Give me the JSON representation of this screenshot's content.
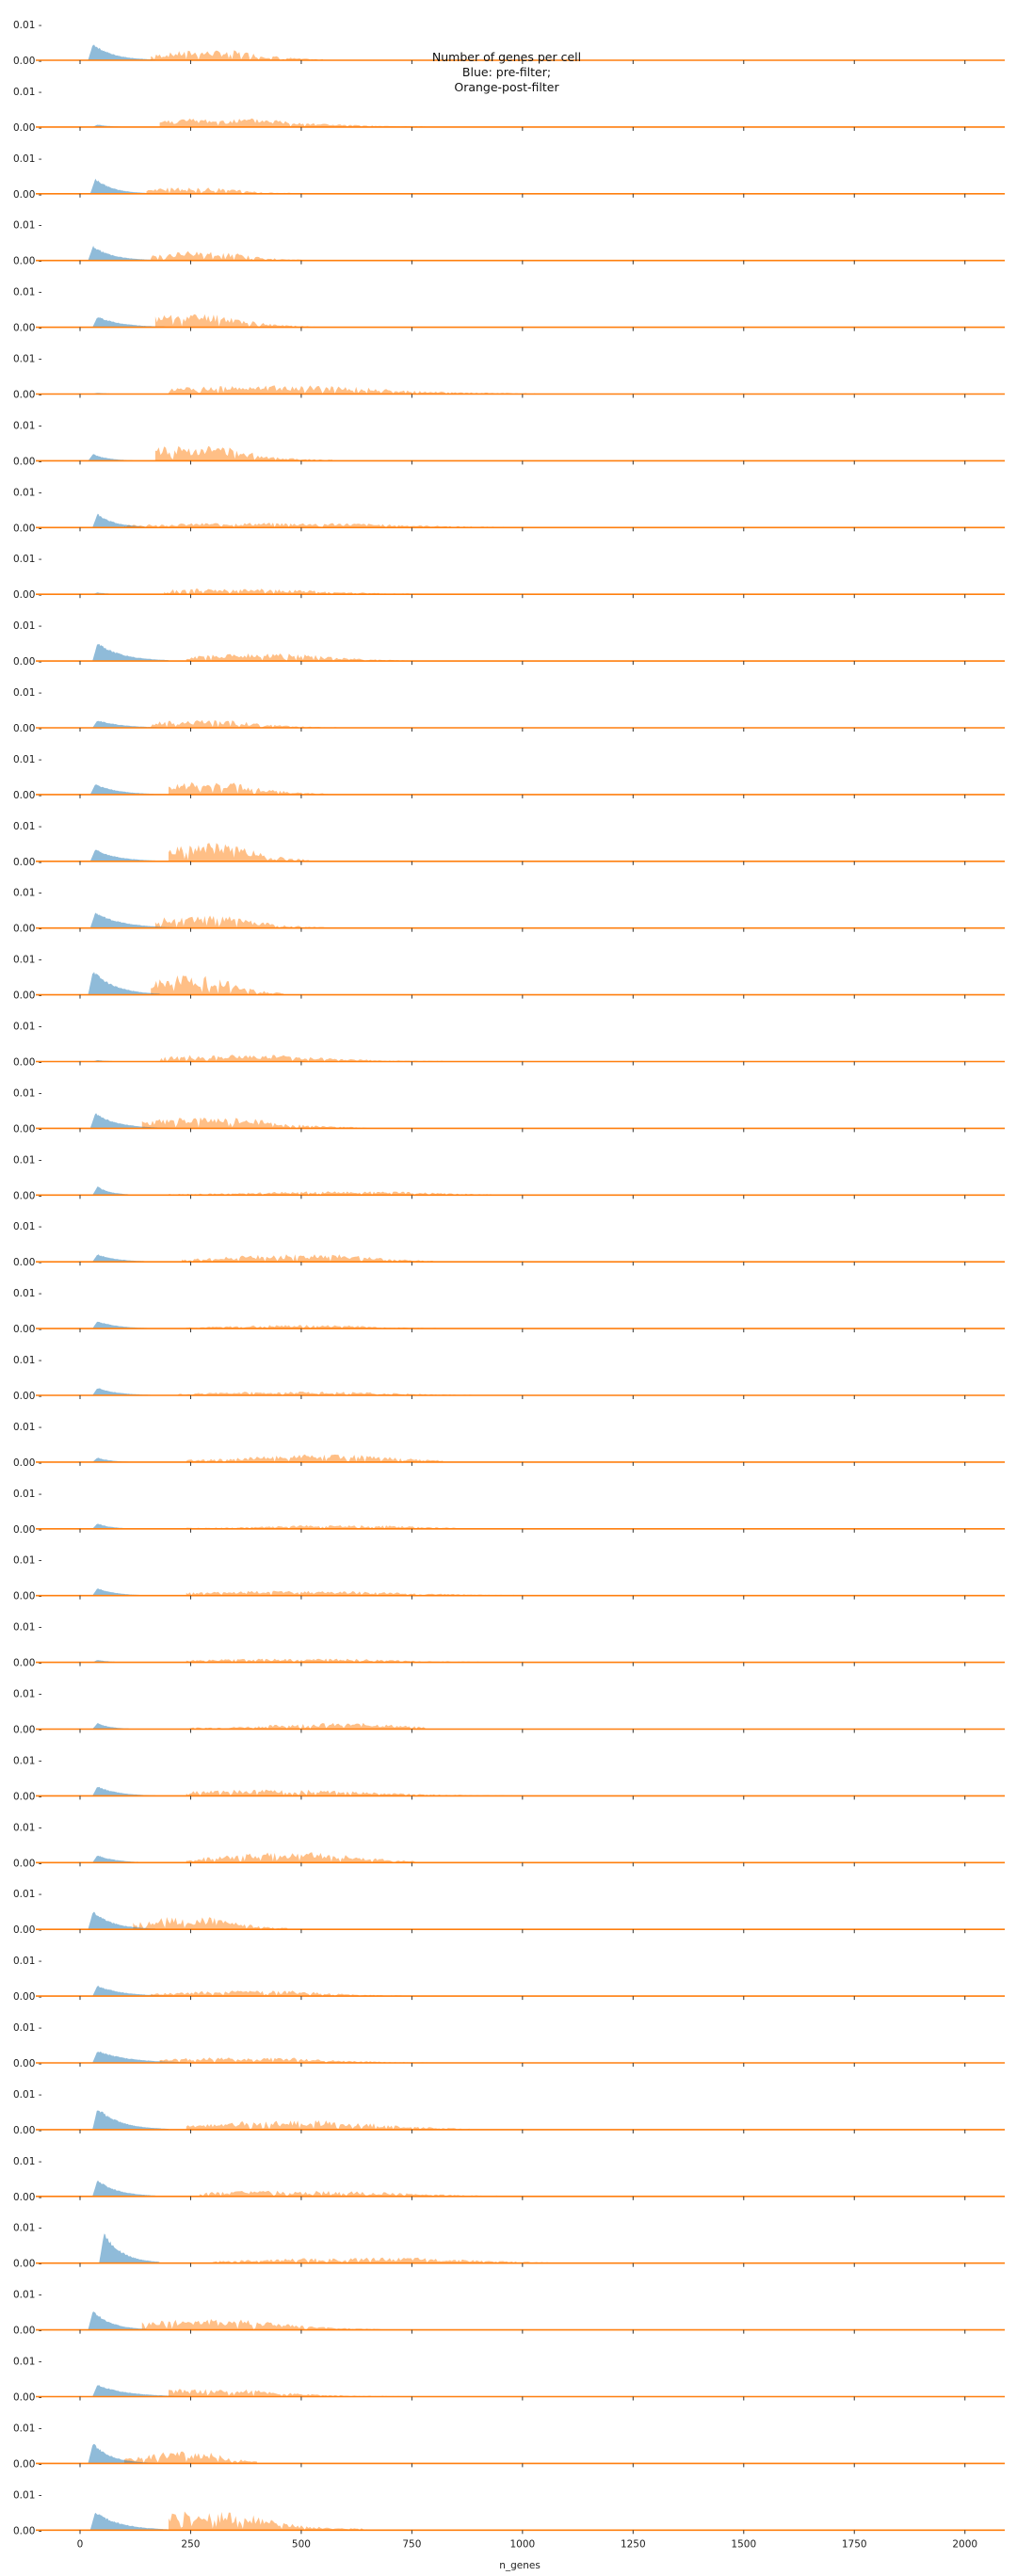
{
  "chart_data": {
    "type": "area",
    "title_lines": [
      "Number of genes per cell",
      "Blue: pre-filter;",
      "Orange-post-filter"
    ],
    "xlabel": "n_genes",
    "xlim": [
      -100,
      2090
    ],
    "x_ticks": [
      0,
      250,
      500,
      750,
      1000,
      1250,
      1500,
      1750,
      2000
    ],
    "y_ticks": [
      "0.00",
      "0.01"
    ],
    "ylim": [
      0,
      0.012
    ],
    "panel_count": 38,
    "colors": {
      "pre_filter": "#1f77b4",
      "post_filter": "#ff7f0e",
      "baseline": "#ff7f0e"
    },
    "series_names": [
      "pre-filter",
      "post-filter"
    ],
    "panels": [
      {
        "pre": {
          "peak": 0.0055,
          "at": 30,
          "w": 45,
          "end": 170
        },
        "post": {
          "peak": 0.0032,
          "start": 160,
          "end": 550,
          "center": 300
        }
      },
      {
        "pre": {
          "peak": 0.0008,
          "at": 40,
          "w": 30,
          "end": 100
        },
        "post": {
          "peak": 0.0028,
          "start": 180,
          "end": 780,
          "center": 330
        }
      },
      {
        "pre": {
          "peak": 0.005,
          "at": 35,
          "w": 40,
          "end": 160
        },
        "post": {
          "peak": 0.002,
          "start": 150,
          "end": 520,
          "center": 260
        }
      },
      {
        "pre": {
          "peak": 0.0048,
          "at": 30,
          "w": 45,
          "end": 170
        },
        "post": {
          "peak": 0.003,
          "start": 160,
          "end": 500,
          "center": 280
        }
      },
      {
        "pre": {
          "peak": 0.0035,
          "at": 40,
          "w": 55,
          "end": 200
        },
        "post": {
          "peak": 0.0045,
          "start": 170,
          "end": 530,
          "center": 260
        }
      },
      {
        "pre": {
          "peak": 0.0004,
          "at": 40,
          "w": 30,
          "end": 90
        },
        "post": {
          "peak": 0.0028,
          "start": 200,
          "end": 1030,
          "center": 450
        }
      },
      {
        "pre": {
          "peak": 0.0022,
          "at": 30,
          "w": 35,
          "end": 120
        },
        "post": {
          "peak": 0.005,
          "start": 170,
          "end": 570,
          "center": 260
        }
      },
      {
        "pre": {
          "peak": 0.0045,
          "at": 40,
          "w": 40,
          "end": 160
        },
        "post": {
          "peak": 0.0016,
          "start": 100,
          "end": 1030,
          "center": 450
        }
      },
      {
        "pre": {
          "peak": 0.0006,
          "at": 40,
          "w": 30,
          "end": 90
        },
        "post": {
          "peak": 0.0018,
          "start": 190,
          "end": 870,
          "center": 350
        }
      },
      {
        "pre": {
          "peak": 0.006,
          "at": 40,
          "w": 55,
          "end": 200
        },
        "post": {
          "peak": 0.0025,
          "start": 240,
          "end": 740,
          "center": 420
        }
      },
      {
        "pre": {
          "peak": 0.0025,
          "at": 40,
          "w": 55,
          "end": 200
        },
        "post": {
          "peak": 0.0025,
          "start": 160,
          "end": 580,
          "center": 280
        }
      },
      {
        "pre": {
          "peak": 0.0035,
          "at": 35,
          "w": 50,
          "end": 200
        },
        "post": {
          "peak": 0.004,
          "start": 200,
          "end": 560,
          "center": 300
        }
      },
      {
        "pre": {
          "peak": 0.004,
          "at": 35,
          "w": 50,
          "end": 190
        },
        "post": {
          "peak": 0.006,
          "start": 200,
          "end": 520,
          "center": 300
        }
      },
      {
        "pre": {
          "peak": 0.0052,
          "at": 35,
          "w": 60,
          "end": 240
        },
        "post": {
          "peak": 0.004,
          "start": 170,
          "end": 560,
          "center": 280
        }
      },
      {
        "pre": {
          "peak": 0.008,
          "at": 30,
          "w": 50,
          "end": 180
        },
        "post": {
          "peak": 0.0065,
          "start": 160,
          "end": 460,
          "center": 260
        }
      },
      {
        "pre": {
          "peak": 0.0005,
          "at": 40,
          "w": 30,
          "end": 90
        },
        "post": {
          "peak": 0.0022,
          "start": 180,
          "end": 820,
          "center": 360
        }
      },
      {
        "pre": {
          "peak": 0.005,
          "at": 35,
          "w": 50,
          "end": 200
        },
        "post": {
          "peak": 0.0035,
          "start": 140,
          "end": 650,
          "center": 300
        }
      },
      {
        "pre": {
          "peak": 0.0028,
          "at": 40,
          "w": 30,
          "end": 120
        },
        "post": {
          "peak": 0.0012,
          "start": 200,
          "end": 940,
          "center": 600
        }
      },
      {
        "pre": {
          "peak": 0.0025,
          "at": 40,
          "w": 45,
          "end": 170
        },
        "post": {
          "peak": 0.0025,
          "start": 230,
          "end": 800,
          "center": 500
        }
      },
      {
        "pre": {
          "peak": 0.0025,
          "at": 40,
          "w": 45,
          "end": 170
        },
        "post": {
          "peak": 0.0012,
          "start": 240,
          "end": 820,
          "center": 500
        }
      },
      {
        "pre": {
          "peak": 0.0025,
          "at": 40,
          "w": 45,
          "end": 170
        },
        "post": {
          "peak": 0.0012,
          "start": 220,
          "end": 960,
          "center": 500
        }
      },
      {
        "pre": {
          "peak": 0.0015,
          "at": 40,
          "w": 30,
          "end": 120
        },
        "post": {
          "peak": 0.0025,
          "start": 240,
          "end": 820,
          "center": 550
        }
      },
      {
        "pre": {
          "peak": 0.0018,
          "at": 40,
          "w": 30,
          "end": 120
        },
        "post": {
          "peak": 0.0012,
          "start": 240,
          "end": 860,
          "center": 600
        }
      },
      {
        "pre": {
          "peak": 0.0025,
          "at": 40,
          "w": 40,
          "end": 150
        },
        "post": {
          "peak": 0.0015,
          "start": 240,
          "end": 1080,
          "center": 500
        }
      },
      {
        "pre": {
          "peak": 0.0008,
          "at": 40,
          "w": 30,
          "end": 100
        },
        "post": {
          "peak": 0.0012,
          "start": 240,
          "end": 1020,
          "center": 500
        }
      },
      {
        "pre": {
          "peak": 0.002,
          "at": 40,
          "w": 30,
          "end": 120
        },
        "post": {
          "peak": 0.002,
          "start": 240,
          "end": 780,
          "center": 580
        }
      },
      {
        "pre": {
          "peak": 0.0032,
          "at": 40,
          "w": 45,
          "end": 170
        },
        "post": {
          "peak": 0.002,
          "start": 240,
          "end": 980,
          "center": 450
        }
      },
      {
        "pre": {
          "peak": 0.0025,
          "at": 40,
          "w": 40,
          "end": 150
        },
        "post": {
          "peak": 0.0035,
          "start": 240,
          "end": 760,
          "center": 480
        }
      },
      {
        "pre": {
          "peak": 0.006,
          "at": 30,
          "w": 45,
          "end": 170
        },
        "post": {
          "peak": 0.004,
          "start": 120,
          "end": 470,
          "center": 250
        }
      },
      {
        "pre": {
          "peak": 0.0035,
          "at": 40,
          "w": 55,
          "end": 200
        },
        "post": {
          "peak": 0.0018,
          "start": 160,
          "end": 740,
          "center": 400
        }
      },
      {
        "pre": {
          "peak": 0.004,
          "at": 40,
          "w": 70,
          "end": 240
        },
        "post": {
          "peak": 0.0018,
          "start": 180,
          "end": 800,
          "center": 380
        }
      },
      {
        "pre": {
          "peak": 0.0072,
          "at": 40,
          "w": 50,
          "end": 200
        },
        "post": {
          "peak": 0.003,
          "start": 240,
          "end": 880,
          "center": 500
        }
      },
      {
        "pre": {
          "peak": 0.0055,
          "at": 40,
          "w": 45,
          "end": 170
        },
        "post": {
          "peak": 0.0018,
          "start": 270,
          "end": 1050,
          "center": 500
        }
      },
      {
        "pre": {
          "peak": 0.01,
          "at": 55,
          "w": 40,
          "end": 180
        },
        "post": {
          "peak": 0.0018,
          "start": 300,
          "end": 1100,
          "center": 650
        }
      },
      {
        "pre": {
          "peak": 0.0065,
          "at": 30,
          "w": 40,
          "end": 150
        },
        "post": {
          "peak": 0.0035,
          "start": 140,
          "end": 680,
          "center": 300
        }
      },
      {
        "pre": {
          "peak": 0.004,
          "at": 40,
          "w": 65,
          "end": 240
        },
        "post": {
          "peak": 0.0025,
          "start": 200,
          "end": 720,
          "center": 300
        }
      },
      {
        "pre": {
          "peak": 0.0068,
          "at": 30,
          "w": 40,
          "end": 170
        },
        "post": {
          "peak": 0.004,
          "start": 100,
          "end": 400,
          "center": 240
        }
      },
      {
        "pre": {
          "peak": 0.0062,
          "at": 35,
          "w": 55,
          "end": 200
        },
        "post": {
          "peak": 0.006,
          "start": 200,
          "end": 650,
          "center": 290
        }
      }
    ]
  }
}
